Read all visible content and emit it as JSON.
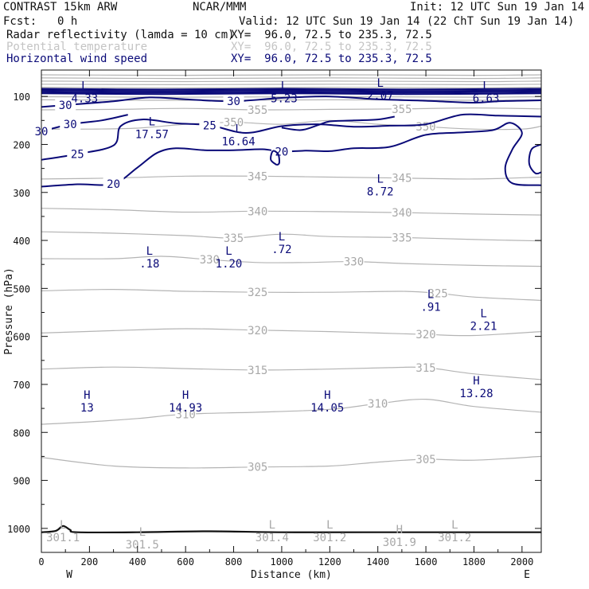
{
  "header": {
    "model": "CONTRAST 15km ARW",
    "org": "NCAR/MMM",
    "init": "Init: 12 UTC Sun 19 Jan 14",
    "fcst_label": "Fcst:",
    "fcst_value": "0 h",
    "valid": "Valid: 12 UTC Sun 19 Jan 14 (22 ChT Sun 19 Jan 14)",
    "fields": [
      {
        "name": "Radar reflectivity (lamda = 10 cm)",
        "xy": "XY=  96.0, 72.5 to 235.3, 72.5",
        "color": "#111111"
      },
      {
        "name": "Potential temperature",
        "xy": "XY=  96.0, 72.5 to 235.3, 72.5",
        "color": "#c4c4c4"
      },
      {
        "name": "Horizontal wind speed",
        "xy": "XY=  96.0, 72.5 to 235.3, 72.5",
        "color": "#0a0a78"
      }
    ]
  },
  "colors": {
    "theta": "#b4b4b4",
    "wind": "#0a0a78",
    "axis": "#111111",
    "terrain": "#111111"
  },
  "chart_data": {
    "type": "cross-section",
    "xlabel": "Distance (km)",
    "ylabel": "Pressure (hPa)",
    "x_ticks": [
      0,
      200,
      400,
      600,
      800,
      1000,
      1200,
      1400,
      1600,
      1800,
      2000
    ],
    "y_ticks": [
      100,
      200,
      300,
      400,
      500,
      600,
      700,
      800,
      900,
      1000
    ],
    "xlim": [
      0,
      2080
    ],
    "ylim": [
      1050,
      45
    ],
    "endpoints": {
      "left": "W",
      "right": "E"
    },
    "theta_lines": [
      {
        "label": "355",
        "points": [
          [
            0,
            128
          ],
          [
            300,
            127
          ],
          [
            600,
            125
          ],
          [
            900,
            128
          ],
          [
            1200,
            127
          ],
          [
            1500,
            126
          ],
          [
            1800,
            124
          ],
          [
            2080,
            126
          ]
        ]
      },
      {
        "label": "350",
        "points": [
          [
            0,
            168
          ],
          [
            200,
            168
          ],
          [
            400,
            166
          ],
          [
            600,
            158
          ],
          [
            800,
            154
          ],
          [
            1000,
            158
          ],
          [
            1200,
            150
          ],
          [
            1400,
            158
          ],
          [
            1600,
            163
          ],
          [
            1800,
            168
          ],
          [
            2000,
            168
          ],
          [
            2080,
            162
          ]
        ]
      },
      {
        "label": "345",
        "points": [
          [
            0,
            272
          ],
          [
            300,
            270
          ],
          [
            600,
            266
          ],
          [
            900,
            266
          ],
          [
            1200,
            268
          ],
          [
            1500,
            270
          ],
          [
            1800,
            272
          ],
          [
            2080,
            268
          ]
        ]
      },
      {
        "label": "340",
        "points": [
          [
            0,
            333
          ],
          [
            300,
            336
          ],
          [
            600,
            341
          ],
          [
            900,
            339
          ],
          [
            1200,
            340
          ],
          [
            1500,
            342
          ],
          [
            1800,
            345
          ],
          [
            2080,
            347
          ]
        ]
      },
      {
        "label": "335",
        "points": [
          [
            0,
            382
          ],
          [
            300,
            385
          ],
          [
            600,
            390
          ],
          [
            800,
            395
          ],
          [
            1000,
            387
          ],
          [
            1200,
            392
          ],
          [
            1500,
            394
          ],
          [
            1800,
            398
          ],
          [
            2080,
            401
          ]
        ]
      },
      {
        "label": "330",
        "points": [
          [
            0,
            438
          ],
          [
            300,
            438
          ],
          [
            500,
            433
          ],
          [
            700,
            440
          ],
          [
            900,
            446
          ],
          [
            1100,
            446
          ],
          [
            1300,
            444
          ],
          [
            1500,
            448
          ],
          [
            1800,
            452
          ],
          [
            2080,
            454
          ]
        ]
      },
      {
        "label": "325",
        "points": [
          [
            0,
            505
          ],
          [
            300,
            502
          ],
          [
            600,
            506
          ],
          [
            900,
            508
          ],
          [
            1200,
            508
          ],
          [
            1500,
            506
          ],
          [
            1650,
            510
          ],
          [
            1800,
            518
          ],
          [
            2080,
            525
          ]
        ]
      },
      {
        "label": "320",
        "points": [
          [
            0,
            593
          ],
          [
            300,
            588
          ],
          [
            600,
            584
          ],
          [
            900,
            587
          ],
          [
            1200,
            590
          ],
          [
            1400,
            593
          ],
          [
            1600,
            596
          ],
          [
            1800,
            598
          ],
          [
            2080,
            590
          ]
        ]
      },
      {
        "label": "315",
        "points": [
          [
            0,
            668
          ],
          [
            300,
            664
          ],
          [
            600,
            667
          ],
          [
            900,
            670
          ],
          [
            1200,
            668
          ],
          [
            1450,
            665
          ],
          [
            1600,
            665
          ],
          [
            1800,
            678
          ],
          [
            2080,
            690
          ]
        ]
      },
      {
        "label": "310",
        "points": [
          [
            0,
            783
          ],
          [
            200,
            778
          ],
          [
            400,
            771
          ],
          [
            600,
            762
          ],
          [
            900,
            758
          ],
          [
            1200,
            752
          ],
          [
            1400,
            740
          ],
          [
            1600,
            731
          ],
          [
            1800,
            746
          ],
          [
            2080,
            758
          ]
        ]
      },
      {
        "label": "305",
        "points": [
          [
            0,
            852
          ],
          [
            300,
            870
          ],
          [
            600,
            874
          ],
          [
            900,
            872
          ],
          [
            1200,
            870
          ],
          [
            1400,
            862
          ],
          [
            1600,
            856
          ],
          [
            1800,
            858
          ],
          [
            2080,
            850
          ]
        ]
      }
    ],
    "wind_lines": [
      {
        "label": "30",
        "points": [
          [
            0,
            122
          ],
          [
            100,
            118
          ],
          [
            300,
            110
          ],
          [
            450,
            102
          ],
          [
            600,
            106
          ],
          [
            800,
            110
          ],
          [
            1000,
            103
          ],
          [
            1200,
            100
          ],
          [
            1400,
            106
          ],
          [
            1600,
            109
          ],
          [
            1800,
            113
          ],
          [
            1900,
            110
          ],
          [
            2080,
            108
          ]
        ]
      },
      {
        "label": "30",
        "points": [
          [
            0,
            173
          ],
          [
            120,
            158
          ],
          [
            250,
            150
          ],
          [
            360,
            138
          ]
        ]
      },
      {
        "label": "25",
        "points": [
          [
            0,
            232
          ],
          [
            150,
            220
          ],
          [
            300,
            202
          ],
          [
            330,
            162
          ],
          [
            420,
            148
          ],
          [
            560,
            156
          ],
          [
            700,
            160
          ],
          [
            850,
            176
          ],
          [
            1000,
            162
          ],
          [
            1150,
            158
          ],
          [
            1300,
            163
          ],
          [
            1450,
            161
          ],
          [
            1600,
            158
          ],
          [
            1750,
            138
          ],
          [
            1900,
            140
          ],
          [
            2080,
            142
          ]
        ]
      },
      {
        "label": "20",
        "points": [
          [
            0,
            288
          ],
          [
            150,
            283
          ],
          [
            300,
            282
          ],
          [
            400,
            248
          ],
          [
            480,
            218
          ],
          [
            560,
            208
          ],
          [
            680,
            212
          ],
          [
            800,
            212
          ],
          [
            920,
            210
          ],
          [
            1000,
            215
          ],
          [
            1100,
            213
          ],
          [
            1200,
            214
          ],
          [
            1300,
            208
          ],
          [
            1450,
            205
          ],
          [
            1600,
            180
          ],
          [
            1750,
            175
          ],
          [
            1880,
            170
          ],
          [
            1950,
            155
          ],
          [
            2000,
            176
          ],
          [
            1960,
            210
          ],
          [
            1930,
            250
          ],
          [
            1960,
            281
          ],
          [
            2080,
            285
          ]
        ]
      },
      {
        "label": "",
        "points": [
          [
            1000,
            165
          ],
          [
            1080,
            170
          ],
          [
            1150,
            160
          ],
          [
            1200,
            152
          ],
          [
            1300,
            150
          ],
          [
            1400,
            148
          ],
          [
            1470,
            142
          ]
        ]
      },
      {
        "label": "",
        "points": [
          [
            980,
            243
          ],
          [
            955,
            232
          ],
          [
            963,
            214
          ],
          [
            985,
            220
          ],
          [
            990,
            238
          ],
          [
            980,
            243
          ]
        ]
      },
      {
        "label": "",
        "points": [
          [
            2080,
            200
          ],
          [
            2040,
            210
          ],
          [
            2030,
            240
          ],
          [
            2055,
            260
          ],
          [
            2080,
            258
          ]
        ]
      }
    ],
    "extrema": [
      {
        "type": "L",
        "value": "4.33",
        "x": 180,
        "p": 86,
        "color": "wind"
      },
      {
        "type": "L",
        "value": "5.23",
        "x": 1010,
        "p": 86,
        "color": "wind"
      },
      {
        "type": "L",
        "value": "2.07",
        "x": 1410,
        "p": 80,
        "color": "wind"
      },
      {
        "type": "L",
        "value": "6.63",
        "x": 1850,
        "p": 86,
        "color": "wind"
      },
      {
        "type": "L",
        "value": "17.57",
        "x": 460,
        "p": 160,
        "color": "wind"
      },
      {
        "type": "L",
        "value": "16.64",
        "x": 820,
        "p": 175,
        "color": "wind"
      },
      {
        "type": "L",
        "value": "8.72",
        "x": 1410,
        "p": 280,
        "color": "wind"
      },
      {
        "type": "L",
        "value": ".18",
        "x": 450,
        "p": 430,
        "color": "wind"
      },
      {
        "type": "L",
        "value": "1.20",
        "x": 780,
        "p": 430,
        "color": "wind"
      },
      {
        "type": "L",
        "value": ".72",
        "x": 1000,
        "p": 400,
        "color": "wind"
      },
      {
        "type": "L",
        "value": ".91",
        "x": 1620,
        "p": 520,
        "color": "wind"
      },
      {
        "type": "L",
        "value": "2.21",
        "x": 1840,
        "p": 560,
        "color": "wind"
      },
      {
        "type": "H",
        "value": "13",
        "x": 190,
        "p": 730,
        "color": "wind"
      },
      {
        "type": "H",
        "value": "14.93",
        "x": 600,
        "p": 730,
        "color": "wind"
      },
      {
        "type": "H",
        "value": "14.05",
        "x": 1190,
        "p": 730,
        "color": "wind"
      },
      {
        "type": "H",
        "value": "13.28",
        "x": 1810,
        "p": 700,
        "color": "wind"
      },
      {
        "type": "L",
        "value": "301.1",
        "x": 90,
        "p": 1000,
        "color": "theta"
      },
      {
        "type": "L",
        "value": "301.5",
        "x": 420,
        "p": 1015,
        "color": "theta"
      },
      {
        "type": "L",
        "value": "301.4",
        "x": 960,
        "p": 1000,
        "color": "theta"
      },
      {
        "type": "L",
        "value": "301.2",
        "x": 1200,
        "p": 1000,
        "color": "theta"
      },
      {
        "type": "H",
        "value": "301.9",
        "x": 1490,
        "p": 1010,
        "color": "theta"
      },
      {
        "type": "L",
        "value": "301.2",
        "x": 1720,
        "p": 1000,
        "color": "theta"
      }
    ],
    "terrain": [
      [
        0,
        1008
      ],
      [
        60,
        1005
      ],
      [
        90,
        995
      ],
      [
        120,
        1003
      ],
      [
        150,
        1008
      ],
      [
        400,
        1008
      ],
      [
        700,
        1006
      ],
      [
        1000,
        1008
      ],
      [
        1400,
        1008
      ],
      [
        2080,
        1008
      ]
    ]
  }
}
